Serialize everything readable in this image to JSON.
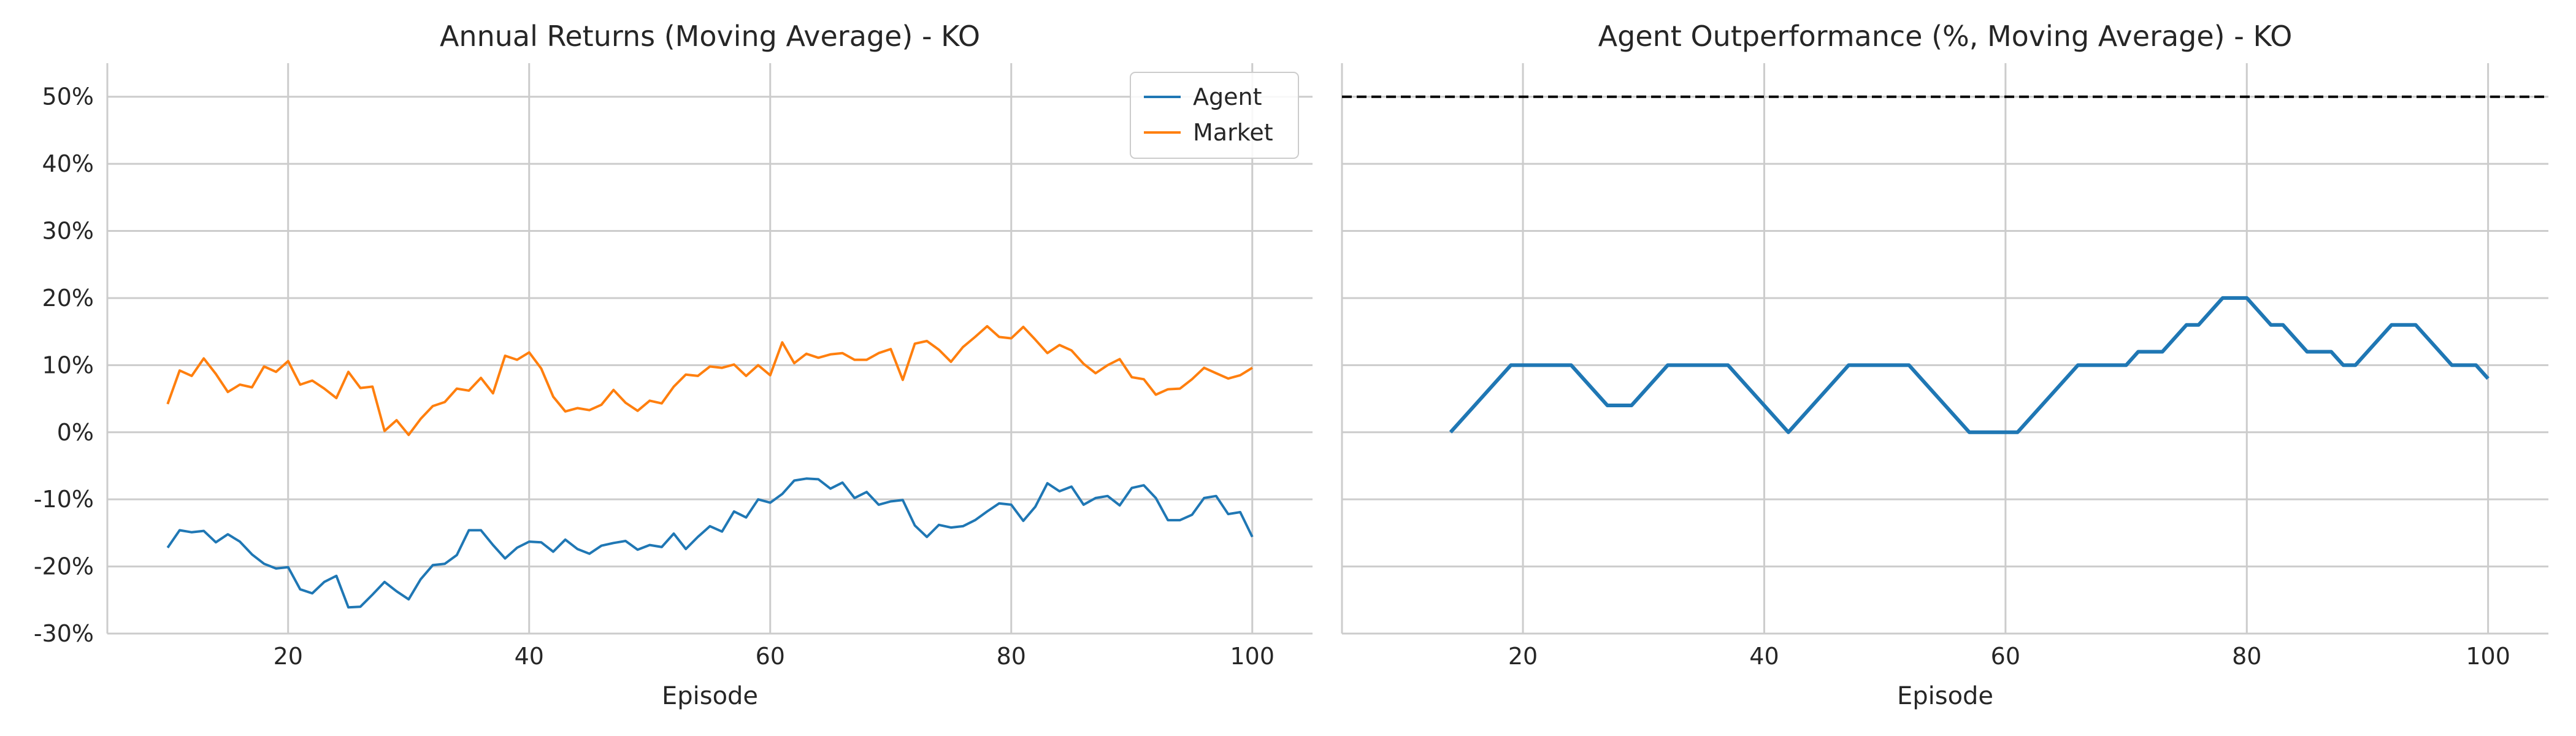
{
  "chart_data": [
    {
      "type": "line",
      "title": "Annual Returns (Moving Average) - KO",
      "xlabel": "Episode",
      "ylabel": "",
      "xlim": [
        5,
        105
      ],
      "ylim": [
        -30,
        55
      ],
      "xticks": [
        20,
        40,
        60,
        80,
        100
      ],
      "yticks": [
        -30,
        -20,
        -10,
        0,
        10,
        20,
        30,
        40,
        50
      ],
      "ytick_labels": [
        "-30%",
        "-20%",
        "-10%",
        "0%",
        "10%",
        "20%",
        "30%",
        "40%",
        "50%"
      ],
      "grid": true,
      "legend": "top-right",
      "x": [
        10,
        11,
        12,
        13,
        14,
        15,
        16,
        17,
        18,
        19,
        20,
        21,
        22,
        23,
        24,
        25,
        26,
        27,
        28,
        29,
        30,
        31,
        32,
        33,
        34,
        35,
        36,
        37,
        38,
        39,
        40,
        41,
        42,
        43,
        44,
        45,
        46,
        47,
        48,
        49,
        50,
        51,
        52,
        53,
        54,
        55,
        56,
        57,
        58,
        59,
        60,
        61,
        62,
        63,
        64,
        65,
        66,
        67,
        68,
        69,
        70,
        71,
        72,
        73,
        74,
        75,
        76,
        77,
        78,
        79,
        80,
        81,
        82,
        83,
        84,
        85,
        86,
        87,
        88,
        89,
        90,
        91,
        92,
        93,
        94,
        95,
        96,
        97,
        98,
        99,
        100
      ],
      "series": [
        {
          "name": "Agent",
          "color": "#1f77b4",
          "values": [
            -17.2,
            -14.6,
            -14.9,
            -14.7,
            -16.4,
            -15.2,
            -16.3,
            -18.2,
            -19.6,
            -20.3,
            -20.1,
            -23.4,
            -24.0,
            -22.3,
            -21.4,
            -26.1,
            -26.0,
            -24.2,
            -22.3,
            -23.7,
            -24.9,
            -21.9,
            -19.8,
            -19.6,
            -18.3,
            -14.6,
            -14.6,
            -16.8,
            -18.8,
            -17.2,
            -16.3,
            -16.4,
            -17.8,
            -16.0,
            -17.4,
            -18.1,
            -16.9,
            -16.5,
            -16.2,
            -17.5,
            -16.8,
            -17.1,
            -15.1,
            -17.4,
            -15.6,
            -14.0,
            -14.8,
            -11.8,
            -12.7,
            -10.0,
            -10.5,
            -9.2,
            -7.2,
            -6.9,
            -7.0,
            -8.4,
            -7.5,
            -9.8,
            -8.9,
            -10.8,
            -10.3,
            -10.1,
            -13.9,
            -15.6,
            -13.8,
            -14.2,
            -14.0,
            -13.1,
            -11.8,
            -10.6,
            -10.8,
            -13.2,
            -11.1,
            -7.6,
            -8.8,
            -8.1,
            -10.8,
            -9.8,
            -9.5,
            -10.9,
            -8.3,
            -7.9,
            -9.8,
            -13.1,
            -13.1,
            -12.3,
            -9.8,
            -9.5,
            -12.2,
            -11.9,
            -15.6
          ]
        },
        {
          "name": "Market",
          "color": "#ff7f0e",
          "values": [
            4.2,
            9.2,
            8.4,
            11.0,
            8.7,
            6.0,
            7.1,
            6.7,
            9.8,
            9.0,
            10.6,
            7.1,
            7.7,
            6.5,
            5.1,
            9.0,
            6.6,
            6.8,
            0.2,
            1.8,
            -0.4,
            2.0,
            3.9,
            4.5,
            6.5,
            6.2,
            8.1,
            5.8,
            11.4,
            10.8,
            11.9,
            9.5,
            5.3,
            3.1,
            3.6,
            3.3,
            4.1,
            6.3,
            4.4,
            3.2,
            4.7,
            4.3,
            6.8,
            8.6,
            8.4,
            9.8,
            9.6,
            10.1,
            8.4,
            10.0,
            8.5,
            13.4,
            10.3,
            11.7,
            11.1,
            11.6,
            11.8,
            10.8,
            10.8,
            11.8,
            12.4,
            7.8,
            13.2,
            13.6,
            12.3,
            10.5,
            12.7,
            14.2,
            15.8,
            14.2,
            14.0,
            15.7,
            13.8,
            11.8,
            13.0,
            12.2,
            10.2,
            8.8,
            10.0,
            10.9,
            8.2,
            7.9,
            5.6,
            6.4,
            6.5,
            7.9,
            9.6,
            8.8,
            8.0,
            8.5,
            9.6
          ]
        }
      ]
    },
    {
      "type": "line",
      "title": "Agent Outperformance (%, Moving Average) - KO",
      "xlabel": "Episode",
      "ylabel": "",
      "xlim": [
        5,
        105
      ],
      "ylim": [
        -30,
        55
      ],
      "xticks": [
        20,
        40,
        60,
        80,
        100
      ],
      "grid": true,
      "reference_line": {
        "y": 50,
        "style": "dashed",
        "color": "#000000"
      },
      "series": [
        {
          "name": "",
          "color": "#1f77b4",
          "x": [
            14,
            19,
            24,
            27,
            29,
            32,
            37,
            42,
            47,
            52,
            57,
            61,
            66,
            70,
            71,
            73,
            75,
            76,
            78,
            80,
            82,
            83,
            85,
            87,
            88,
            89,
            92,
            94,
            97,
            99,
            100
          ],
          "values": [
            0,
            10,
            10,
            4,
            4,
            10,
            10,
            0,
            10,
            10,
            0,
            0,
            10,
            10,
            12,
            12,
            16,
            16,
            20,
            20,
            16,
            16,
            12,
            12,
            10,
            10,
            16,
            16,
            10,
            10,
            8
          ]
        }
      ]
    }
  ]
}
